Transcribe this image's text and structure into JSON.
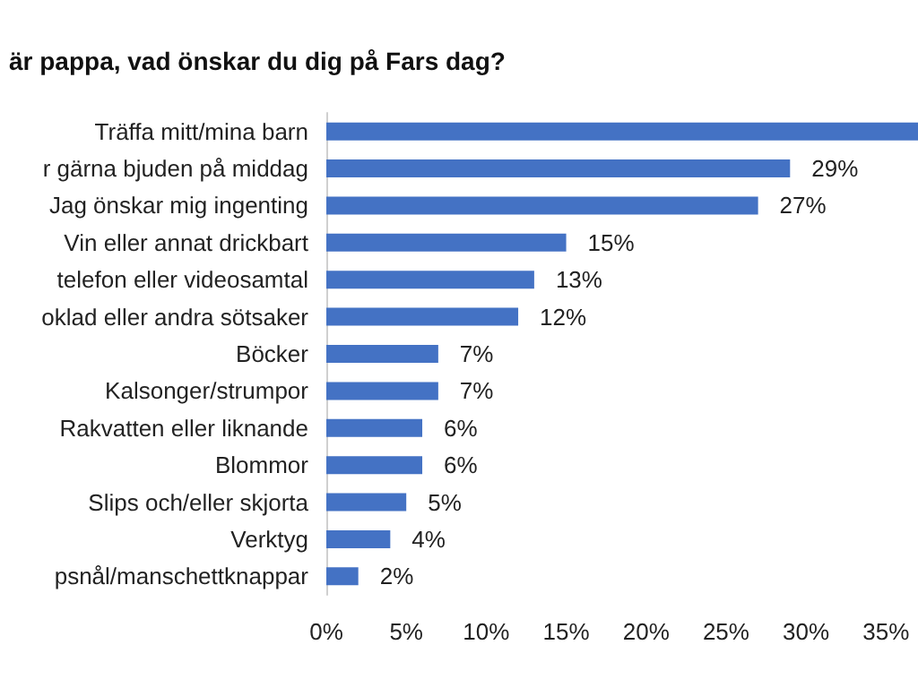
{
  "chart_data": {
    "type": "bar",
    "orientation": "horizontal",
    "title": "är pappa, vad önskar du dig på Fars dag?",
    "categories": [
      "Träffa mitt/mina barn",
      "r gärna bjuden på middag",
      "Jag önskar mig ingenting",
      "Vin eller annat drickbart",
      "telefon eller videosamtal",
      "oklad eller andra sötsaker",
      "Böcker",
      "Kalsonger/strumpor",
      "Rakvatten eller liknande",
      "Blommor",
      "Slips och/eller skjorta",
      "Verktyg",
      "psnål/manschettknappar"
    ],
    "values": [
      37,
      29,
      27,
      15,
      13,
      12,
      7,
      7,
      6,
      6,
      5,
      4,
      2
    ],
    "value_labels": [
      null,
      "29%",
      "27%",
      "15%",
      "13%",
      "12%",
      "7%",
      "7%",
      "6%",
      "6%",
      "5%",
      "4%",
      "2%"
    ],
    "color": "#4472c4",
    "xlim": [
      0,
      37
    ],
    "xticks": [
      {
        "value": 0,
        "label": "0%"
      },
      {
        "value": 5,
        "label": "5%"
      },
      {
        "value": 10,
        "label": "10%"
      },
      {
        "value": 15,
        "label": "15%"
      },
      {
        "value": 20,
        "label": "20%"
      },
      {
        "value": 25,
        "label": "25%"
      },
      {
        "value": 30,
        "label": "30%"
      },
      {
        "value": 35,
        "label": "35%"
      }
    ],
    "grid": false
  }
}
